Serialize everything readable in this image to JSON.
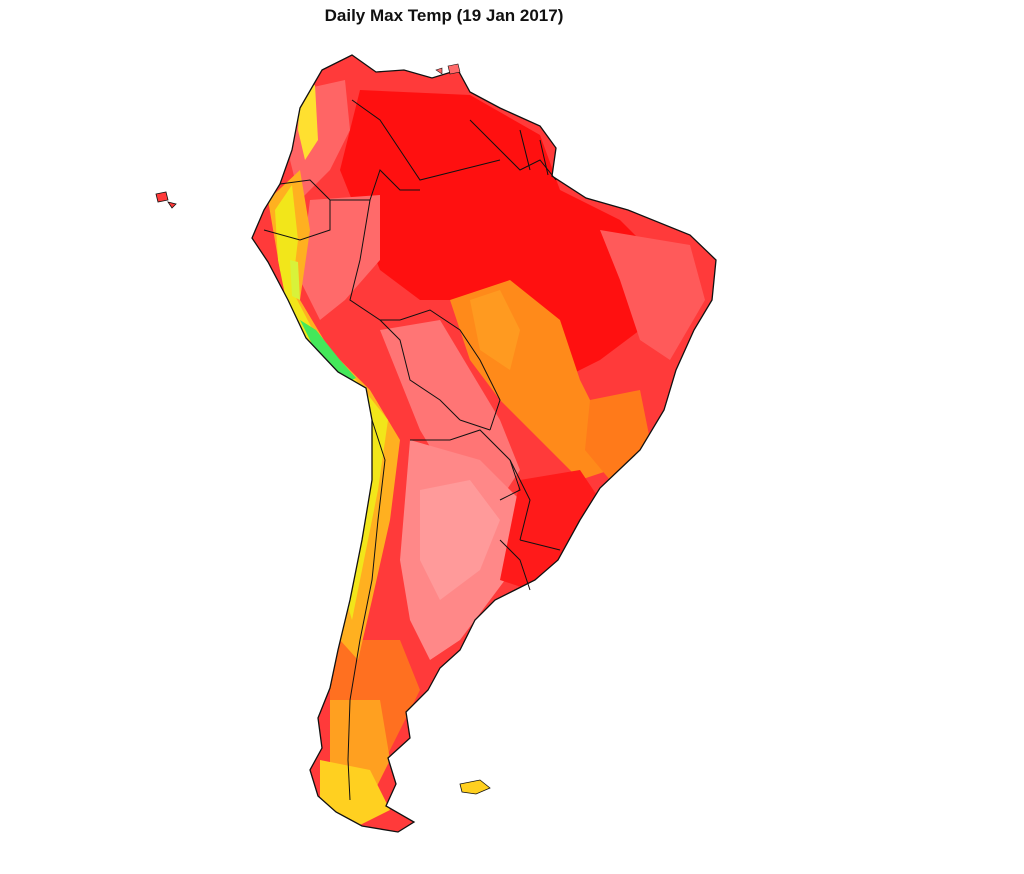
{
  "map": {
    "title": "Daily Max Temp (19 Jan 2017)",
    "region": "South America",
    "colors": {
      "hottest": "#ff1a1a",
      "hot": "#ff4545",
      "warm_pink": "#ff7a7a",
      "orange": "#ff8c1a",
      "yellow_orange": "#ffd21a",
      "yellow": "#f5f51a",
      "cool_green": "#3cff5a",
      "boundary": "#111111",
      "background": "#ffffff"
    }
  }
}
